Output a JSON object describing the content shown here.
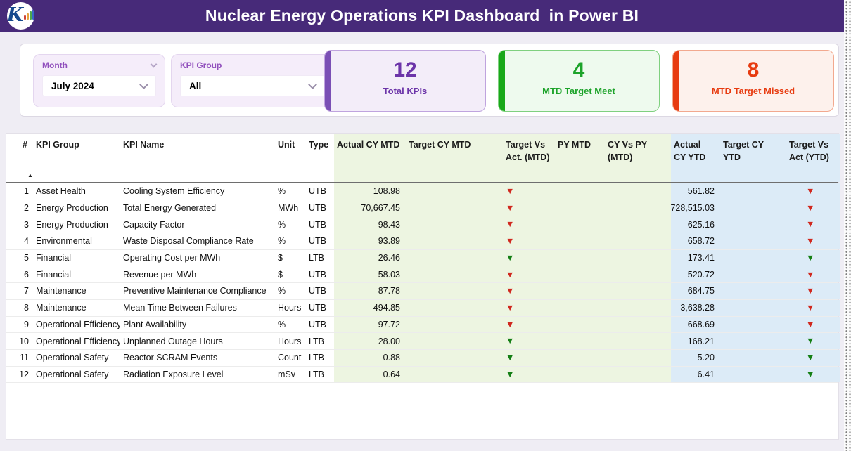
{
  "header": {
    "title": "Nuclear Energy Operations KPI Dashboard  in Power BI"
  },
  "filters": {
    "month": {
      "label": "Month",
      "value": "July 2024"
    },
    "kpi_group": {
      "label": "KPI Group",
      "value": "All"
    }
  },
  "kpi_cards": [
    {
      "value": "12",
      "label": "Total KPIs",
      "accent_color": "#7a4fb5"
    },
    {
      "value": "4",
      "label": "MTD Target Meet",
      "accent_color": "#18a818"
    },
    {
      "value": "8",
      "label": "MTD Target Missed",
      "accent_color": "#e73b10"
    }
  ],
  "icons": {
    "down_triangle": "▼",
    "sort_ascending": "▲"
  },
  "status_colors": {
    "missed": "#d0281e",
    "met": "#157f15"
  },
  "table": {
    "columns": [
      "#",
      "KPI Group",
      "KPI Name",
      "Unit",
      "Type",
      "Actual CY MTD",
      "Target CY MTD",
      "Target Vs Act. (MTD)",
      "PY MTD",
      "CY Vs PY (MTD)",
      "Actual CY YTD",
      "Target CY YTD",
      "Target Vs Act (YTD)"
    ],
    "rows": [
      {
        "num": "1",
        "group": "Asset Health",
        "name": "Cooling System Efficiency",
        "unit": "%",
        "type": "UTB",
        "actual_cy_mtd": "108.98",
        "mtd_status": "missed",
        "actual_cy_ytd": "561.82",
        "ytd_status": "missed"
      },
      {
        "num": "2",
        "group": "Energy Production",
        "name": "Total Energy Generated",
        "unit": "MWh",
        "type": "UTB",
        "actual_cy_mtd": "70,667.45",
        "mtd_status": "missed",
        "actual_cy_ytd": "728,515.03",
        "ytd_status": "missed"
      },
      {
        "num": "3",
        "group": "Energy Production",
        "name": "Capacity Factor",
        "unit": "%",
        "type": "UTB",
        "actual_cy_mtd": "98.43",
        "mtd_status": "missed",
        "actual_cy_ytd": "625.16",
        "ytd_status": "missed"
      },
      {
        "num": "4",
        "group": "Environmental",
        "name": "Waste Disposal Compliance Rate",
        "unit": "%",
        "type": "UTB",
        "actual_cy_mtd": "93.89",
        "mtd_status": "missed",
        "actual_cy_ytd": "658.72",
        "ytd_status": "missed"
      },
      {
        "num": "5",
        "group": "Financial",
        "name": "Operating Cost per MWh",
        "unit": "$",
        "type": "LTB",
        "actual_cy_mtd": "26.46",
        "mtd_status": "met",
        "actual_cy_ytd": "173.41",
        "ytd_status": "met"
      },
      {
        "num": "6",
        "group": "Financial",
        "name": "Revenue per MWh",
        "unit": "$",
        "type": "UTB",
        "actual_cy_mtd": "58.03",
        "mtd_status": "missed",
        "actual_cy_ytd": "520.72",
        "ytd_status": "missed"
      },
      {
        "num": "7",
        "group": "Maintenance",
        "name": "Preventive Maintenance Compliance",
        "unit": "%",
        "type": "UTB",
        "actual_cy_mtd": "87.78",
        "mtd_status": "missed",
        "actual_cy_ytd": "684.75",
        "ytd_status": "missed"
      },
      {
        "num": "8",
        "group": "Maintenance",
        "name": "Mean Time Between Failures",
        "unit": "Hours",
        "type": "UTB",
        "actual_cy_mtd": "494.85",
        "mtd_status": "missed",
        "actual_cy_ytd": "3,638.28",
        "ytd_status": "missed"
      },
      {
        "num": "9",
        "group": "Operational Efficiency",
        "name": "Plant Availability",
        "unit": "%",
        "type": "UTB",
        "actual_cy_mtd": "97.72",
        "mtd_status": "missed",
        "actual_cy_ytd": "668.69",
        "ytd_status": "missed"
      },
      {
        "num": "10",
        "group": "Operational Efficiency",
        "name": "Unplanned Outage Hours",
        "unit": "Hours",
        "type": "LTB",
        "actual_cy_mtd": "28.00",
        "mtd_status": "met",
        "actual_cy_ytd": "168.21",
        "ytd_status": "met"
      },
      {
        "num": "11",
        "group": "Operational Safety",
        "name": "Reactor SCRAM Events",
        "unit": "Count",
        "type": "LTB",
        "actual_cy_mtd": "0.88",
        "mtd_status": "met",
        "actual_cy_ytd": "5.20",
        "ytd_status": "met"
      },
      {
        "num": "12",
        "group": "Operational Safety",
        "name": "Radiation Exposure Level",
        "unit": "mSv",
        "type": "LTB",
        "actual_cy_mtd": "0.64",
        "mtd_status": "met",
        "actual_cy_ytd": "6.41",
        "ytd_status": "met"
      }
    ]
  }
}
